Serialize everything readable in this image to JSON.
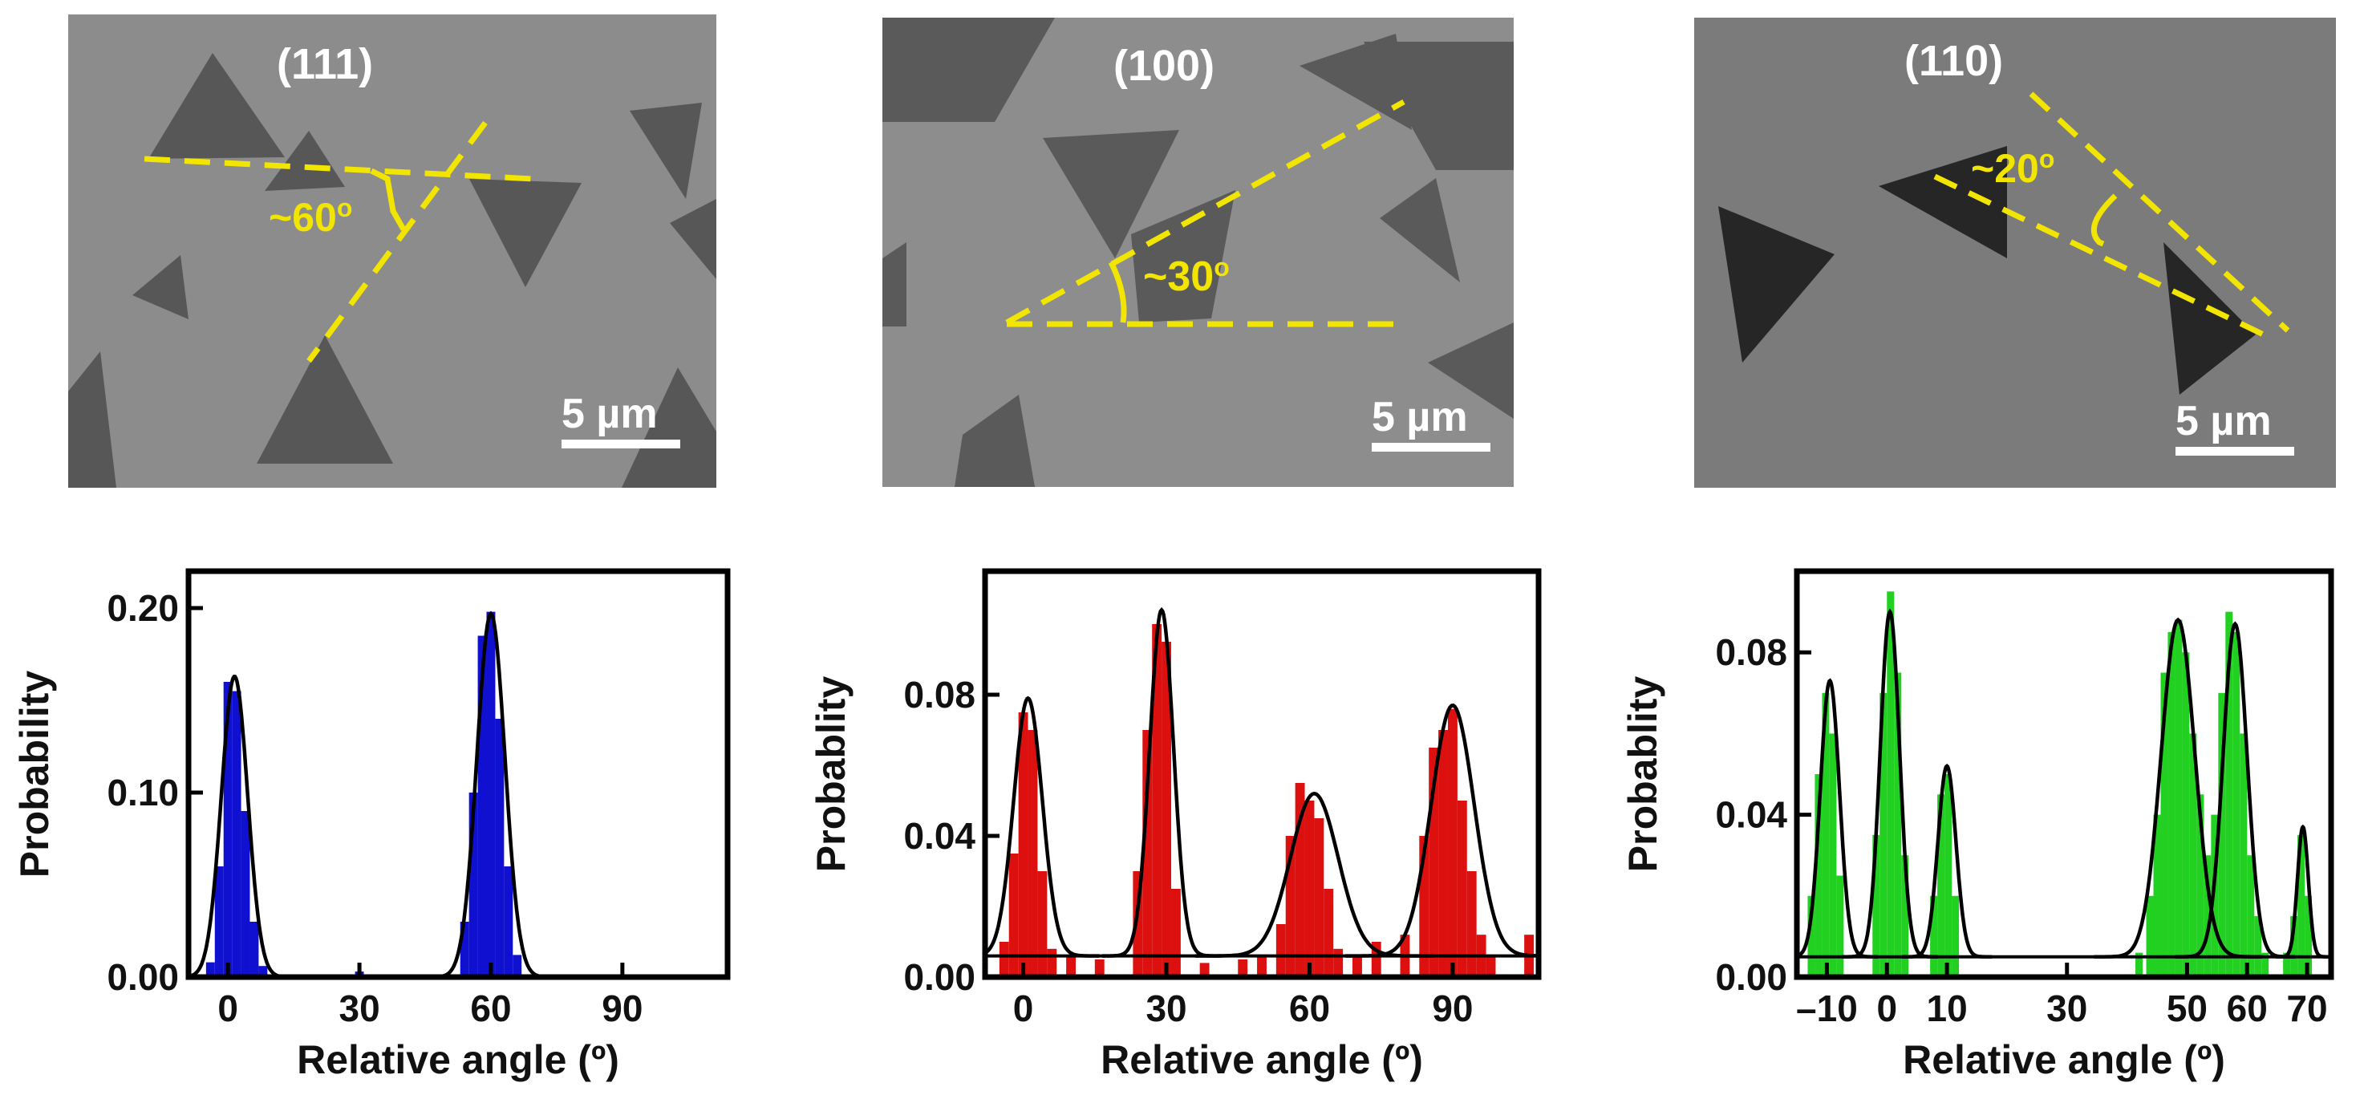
{
  "micrographs": [
    {
      "plane": "(111)",
      "angle": "~60",
      "deg": "o",
      "scale": "5 µm",
      "line_color": "#f2e600"
    },
    {
      "plane": "(100)",
      "angle": "~30",
      "deg": "o",
      "scale": "5 µm",
      "line_color": "#f2e600"
    },
    {
      "plane": "(110)",
      "angle": "~20",
      "deg": "o",
      "scale": "5 µm",
      "line_color": "#f2e600"
    }
  ],
  "chart_data": [
    {
      "type": "bar",
      "panel": "(111)",
      "xlabel": "Relative angle (º)",
      "ylabel": "Probability",
      "xlim": [
        -9,
        114
      ],
      "ylim": [
        0,
        0.22
      ],
      "xticks": [
        0,
        30,
        60,
        90
      ],
      "xtick_labels": [
        "0",
        "30",
        "60",
        "90"
      ],
      "yticks": [
        0.0,
        0.1,
        0.2
      ],
      "ytick_labels": [
        "0.00",
        "0.10",
        "0.20"
      ],
      "bar_color": "#1010d0",
      "bin_width": 2,
      "bars": {
        "x": [
          -4,
          -2,
          0,
          2,
          4,
          6,
          8,
          30,
          54,
          56,
          58,
          60,
          62,
          64,
          66
        ],
        "y": [
          0.008,
          0.06,
          0.16,
          0.155,
          0.09,
          0.03,
          0.006,
          0.003,
          0.03,
          0.1,
          0.185,
          0.198,
          0.14,
          0.06,
          0.012
        ]
      },
      "fit": {
        "baseline": 0.0,
        "peaks": [
          {
            "center": 1.5,
            "amp": 0.163,
            "sigma": 3.0
          },
          {
            "center": 60,
            "amp": 0.197,
            "sigma": 3.2
          }
        ]
      }
    },
    {
      "type": "bar",
      "panel": "(100)",
      "xlabel": "Relative angle (º)",
      "ylabel": "Probablity",
      "xlim": [
        -8,
        108
      ],
      "ylim": [
        0,
        0.115
      ],
      "xticks": [
        0,
        30,
        60,
        90
      ],
      "xtick_labels": [
        "0",
        "30",
        "60",
        "90"
      ],
      "yticks": [
        0.0,
        0.04,
        0.08
      ],
      "ytick_labels": [
        "0.00",
        "0.04",
        "0.08"
      ],
      "bar_color": "#dd1010",
      "bin_width": 2,
      "bars": {
        "x": [
          -4,
          -2,
          0,
          2,
          4,
          6,
          10,
          16,
          24,
          26,
          28,
          30,
          32,
          38,
          46,
          50,
          54,
          56,
          58,
          60,
          62,
          64,
          66,
          70,
          74,
          80,
          84,
          86,
          88,
          90,
          92,
          94,
          96,
          98,
          106
        ],
        "y": [
          0.01,
          0.035,
          0.075,
          0.07,
          0.03,
          0.008,
          0.006,
          0.005,
          0.03,
          0.07,
          0.1,
          0.095,
          0.025,
          0.004,
          0.005,
          0.006,
          0.015,
          0.04,
          0.055,
          0.05,
          0.045,
          0.025,
          0.008,
          0.006,
          0.01,
          0.012,
          0.04,
          0.065,
          0.07,
          0.076,
          0.05,
          0.03,
          0.012,
          0.006,
          0.012
        ]
      },
      "fit": {
        "baseline": 0.006,
        "peaks": [
          {
            "center": 1.0,
            "amp": 0.073,
            "sigma": 3.0
          },
          {
            "center": 29,
            "amp": 0.098,
            "sigma": 2.5
          },
          {
            "center": 61,
            "amp": 0.046,
            "sigma": 5.0
          },
          {
            "center": 90,
            "amp": 0.071,
            "sigma": 4.5
          }
        ]
      }
    },
    {
      "type": "bar",
      "panel": "(110)",
      "xlabel": "Relative angle (º)",
      "ylabel": "Probablity",
      "xlim": [
        -15,
        74
      ],
      "ylim": [
        0,
        0.1
      ],
      "xticks": [
        -10,
        0,
        10,
        30,
        50,
        60,
        70
      ],
      "xtick_labels": [
        "–10",
        "0",
        "10",
        "30",
        "50",
        "60",
        "70"
      ],
      "yticks": [
        0.0,
        0.04,
        0.08
      ],
      "ytick_labels": [
        "0.00",
        "0.04",
        "0.08"
      ],
      "bar_color": "#22d022",
      "bin_width": 1.2,
      "bars": {
        "x": [
          -12.6,
          -11.4,
          -10.2,
          -9,
          -7.8,
          -1.8,
          -0.6,
          0.6,
          1.8,
          3,
          7.8,
          9,
          10.2,
          11.4,
          42,
          43.8,
          45,
          46.2,
          47.4,
          48.6,
          49.8,
          51,
          52.2,
          53.4,
          54.6,
          55.8,
          57,
          58.2,
          59.4,
          60.6,
          61.8,
          63,
          66.6,
          67.8,
          69,
          70.2
        ],
        "y": [
          0.02,
          0.05,
          0.07,
          0.06,
          0.025,
          0.035,
          0.07,
          0.095,
          0.075,
          0.03,
          0.02,
          0.045,
          0.05,
          0.02,
          0.006,
          0.02,
          0.04,
          0.075,
          0.085,
          0.088,
          0.08,
          0.06,
          0.045,
          0.03,
          0.04,
          0.07,
          0.09,
          0.085,
          0.06,
          0.03,
          0.015,
          0.006,
          0.006,
          0.015,
          0.035,
          0.02
        ]
      },
      "fit": {
        "baseline": 0.005,
        "peaks": [
          {
            "center": -9.5,
            "amp": 0.068,
            "sigma": 1.6
          },
          {
            "center": 0.5,
            "amp": 0.085,
            "sigma": 1.6
          },
          {
            "center": 10,
            "amp": 0.047,
            "sigma": 1.5
          },
          {
            "center": 48.5,
            "amp": 0.083,
            "sigma": 2.8
          },
          {
            "center": 58,
            "amp": 0.082,
            "sigma": 2.0
          },
          {
            "center": 69.3,
            "amp": 0.032,
            "sigma": 0.9
          }
        ]
      }
    }
  ]
}
